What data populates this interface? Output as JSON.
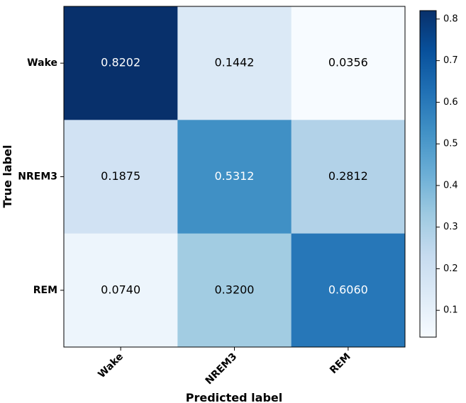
{
  "chart_data": {
    "type": "heatmap",
    "xlabel": "Predicted label",
    "ylabel": "True label",
    "x_categories": [
      "Wake",
      "NREM3",
      "REM"
    ],
    "y_categories": [
      "Wake",
      "NREM3",
      "REM"
    ],
    "values": [
      [
        0.8202,
        0.1442,
        0.0356
      ],
      [
        0.1875,
        0.5312,
        0.2812
      ],
      [
        0.074,
        0.32,
        0.606
      ]
    ],
    "value_labels": [
      [
        "0.8202",
        "0.1442",
        "0.0356"
      ],
      [
        "0.1875",
        "0.5312",
        "0.2812"
      ],
      [
        "0.0740",
        "0.3200",
        "0.6060"
      ]
    ],
    "colormap": "Blues",
    "colorbar": {
      "range": [
        0.0356,
        0.8202
      ],
      "ticks": [
        0.1,
        0.2,
        0.3,
        0.4,
        0.5,
        0.6,
        0.7,
        0.8
      ],
      "tick_labels": [
        "0.1",
        "0.2",
        "0.3",
        "0.4",
        "0.5",
        "0.6",
        "0.7",
        "0.8"
      ]
    },
    "text_color_dark": "#000000",
    "text_color_light": "#ffffff"
  }
}
